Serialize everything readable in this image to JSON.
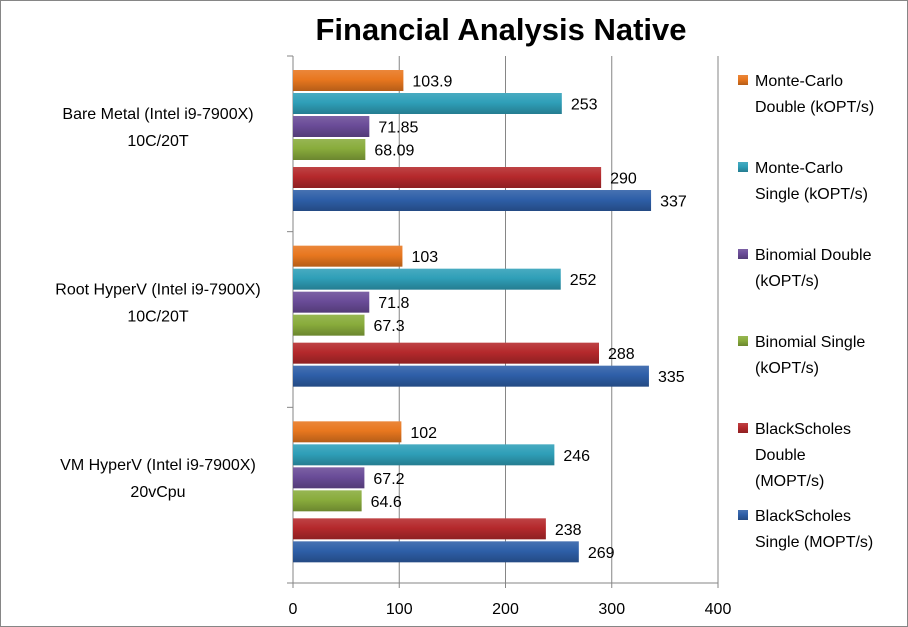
{
  "chart_data": {
    "type": "bar",
    "orientation": "horizontal",
    "title": "Financial Analysis Native",
    "categories": [
      [
        "Bare Metal (Intel i9-7900X)",
        "10C/20T"
      ],
      [
        "Root HyperV (Intel i9-7900X)",
        "10C/20T"
      ],
      [
        "VM HyperV (Intel i9-7900X)",
        "20vCpu"
      ]
    ],
    "series": [
      {
        "name": [
          "Monte-Carlo",
          "Double (kOPT/s)"
        ],
        "color": "#E8771F",
        "values": [
          103.9,
          103,
          102
        ],
        "labels": [
          "103.9",
          "103",
          "102"
        ]
      },
      {
        "name": [
          "Monte-Carlo",
          "Single (kOPT/s)"
        ],
        "color": "#2F9FB8",
        "values": [
          253,
          252,
          246
        ],
        "labels": [
          "253",
          "252",
          "246"
        ]
      },
      {
        "name": [
          "Binomial Double",
          "(kOPT/s)"
        ],
        "color": "#6A4C98",
        "values": [
          71.85,
          71.8,
          67.2
        ],
        "labels": [
          "71.85",
          "71.8",
          "67.2"
        ]
      },
      {
        "name": [
          "Binomial Single",
          "(kOPT/s)"
        ],
        "color": "#89AC3C",
        "values": [
          68.09,
          67.3,
          64.6
        ],
        "labels": [
          "68.09",
          "67.3",
          "64.6"
        ]
      },
      {
        "name": [
          "BlackScholes",
          "Double",
          "(MOPT/s)"
        ],
        "color": "#B5292C",
        "values": [
          290,
          288,
          238
        ],
        "labels": [
          "290",
          "288",
          "238"
        ]
      },
      {
        "name": [
          "BlackScholes",
          "Single (MOPT/s)"
        ],
        "color": "#2E5FA8",
        "values": [
          337,
          335,
          269
        ],
        "labels": [
          "337",
          "335",
          "269"
        ]
      }
    ],
    "xlim": [
      0,
      400
    ],
    "xticks": [
      "0",
      "100",
      "200",
      "300",
      "400"
    ],
    "grid": true,
    "legend": "right"
  }
}
